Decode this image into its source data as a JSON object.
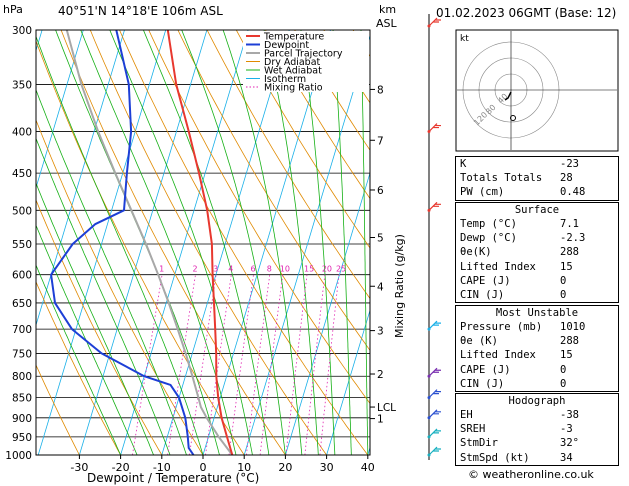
{
  "header": {
    "location": "40°51'N  14°18'E  106m  ASL",
    "datetime": "01.02.2023  06GMT  (Base: 12)",
    "hpa_unit": "hPa",
    "km_unit": "km",
    "asl_unit": "ASL"
  },
  "legend": [
    "Temperature",
    "Dewpoint",
    "Parcel Trajectory",
    "Dry Adiabat",
    "Wet Adiabat",
    "Isotherm",
    "Mixing Ratio"
  ],
  "colors": {
    "temperature": "#e8382f",
    "dewpoint": "#1d3fd6",
    "parcel": "#a8a8a8",
    "dry_adiabat": "#e08a00",
    "wet_adiabat": "#16b016",
    "isotherm": "#1ab0e8",
    "mixing_ratio": "#e020b0"
  },
  "chart_data": {
    "type": "line",
    "title": "",
    "xlabel": "Dewpoint / Temperature (°C)",
    "ylabel_right": "Mixing Ratio (g/kg)",
    "pressure_levels": [
      300,
      350,
      400,
      450,
      500,
      550,
      600,
      650,
      700,
      750,
      800,
      850,
      900,
      950,
      1000
    ],
    "x_ticks": [
      -30,
      -20,
      -10,
      0,
      10,
      20,
      30,
      40
    ],
    "xlim": [
      -35,
      40
    ],
    "ylim": [
      1000,
      300
    ],
    "km_ticks": [
      {
        "label": "8",
        "p": 355
      },
      {
        "label": "7",
        "p": 410
      },
      {
        "label": "6",
        "p": 472
      },
      {
        "label": "5",
        "p": 540
      },
      {
        "label": "4",
        "p": 620
      },
      {
        "label": "3",
        "p": 703
      },
      {
        "label": "2",
        "p": 795
      },
      {
        "label": "LCL",
        "p": 873
      },
      {
        "label": "1",
        "p": 902
      }
    ],
    "mixing_ratio_labels": [
      "1",
      "2",
      "3",
      "4",
      "6",
      "8",
      "10",
      "15",
      "20",
      "25"
    ],
    "series": [
      {
        "name": "Temperature",
        "points": [
          [
            1000,
            7.1
          ],
          [
            950,
            4.5
          ],
          [
            900,
            1.8
          ],
          [
            850,
            -0.5
          ],
          [
            800,
            -2.5
          ],
          [
            750,
            -4.2
          ],
          [
            700,
            -6.2
          ],
          [
            650,
            -8.4
          ],
          [
            600,
            -10.8
          ],
          [
            550,
            -13.2
          ],
          [
            500,
            -16.8
          ],
          [
            450,
            -21.5
          ],
          [
            400,
            -27.0
          ],
          [
            350,
            -33.5
          ],
          [
            300,
            -39.5
          ]
        ]
      },
      {
        "name": "Dewpoint",
        "points": [
          [
            1000,
            -2.3
          ],
          [
            980,
            -4
          ],
          [
            950,
            -5
          ],
          [
            900,
            -7
          ],
          [
            850,
            -10
          ],
          [
            820,
            -13
          ],
          [
            800,
            -20
          ],
          [
            750,
            -32
          ],
          [
            700,
            -41
          ],
          [
            650,
            -47
          ],
          [
            600,
            -50
          ],
          [
            550,
            -47
          ],
          [
            520,
            -43
          ],
          [
            500,
            -37
          ],
          [
            450,
            -39
          ],
          [
            400,
            -41
          ],
          [
            350,
            -45
          ],
          [
            300,
            -52
          ]
        ]
      },
      {
        "name": "Parcel Trajectory",
        "points": [
          [
            1000,
            7.1
          ],
          [
            950,
            2.5
          ],
          [
            900,
            -1.8
          ],
          [
            873,
            -4.0
          ],
          [
            850,
            -5.3
          ],
          [
            800,
            -8.3
          ],
          [
            750,
            -11.6
          ],
          [
            700,
            -15.3
          ],
          [
            650,
            -19.4
          ],
          [
            600,
            -24.0
          ],
          [
            550,
            -29.2
          ],
          [
            500,
            -35.2
          ],
          [
            450,
            -41.8
          ],
          [
            400,
            -49.0
          ],
          [
            350,
            -56.5
          ],
          [
            300,
            -64.0
          ]
        ]
      }
    ]
  },
  "hodograph": {
    "label": "kt",
    "ring_labels": [
      "40",
      "80",
      "120"
    ]
  },
  "indices": [
    {
      "label": "K",
      "value": "-23"
    },
    {
      "label": "Totals Totals",
      "value": "28"
    },
    {
      "label": "PW (cm)",
      "value": "0.48"
    }
  ],
  "surface": {
    "title": "Surface",
    "rows": [
      {
        "label": "Temp (°C)",
        "value": "7.1"
      },
      {
        "label": "Dewp (°C)",
        "value": "-2.3"
      },
      {
        "label": "θe(K)",
        "value": "288"
      },
      {
        "label": "Lifted Index",
        "value": "15"
      },
      {
        "label": "CAPE (J)",
        "value": "0"
      },
      {
        "label": "CIN (J)",
        "value": "0"
      }
    ]
  },
  "most_unstable": {
    "title": "Most Unstable",
    "rows": [
      {
        "label": "Pressure (mb)",
        "value": "1010"
      },
      {
        "label": "θe (K)",
        "value": "288"
      },
      {
        "label": "Lifted Index",
        "value": "15"
      },
      {
        "label": "CAPE (J)",
        "value": "0"
      },
      {
        "label": "CIN (J)",
        "value": "0"
      }
    ]
  },
  "hodograph_table": {
    "title": "Hodograph",
    "rows": [
      {
        "label": "EH",
        "value": "-38"
      },
      {
        "label": "SREH",
        "value": "-3"
      },
      {
        "label": "StmDir",
        "value": "32°"
      },
      {
        "label": "StmSpd (kt)",
        "value": "34"
      }
    ]
  },
  "footer": "© weatheronline.co.uk"
}
